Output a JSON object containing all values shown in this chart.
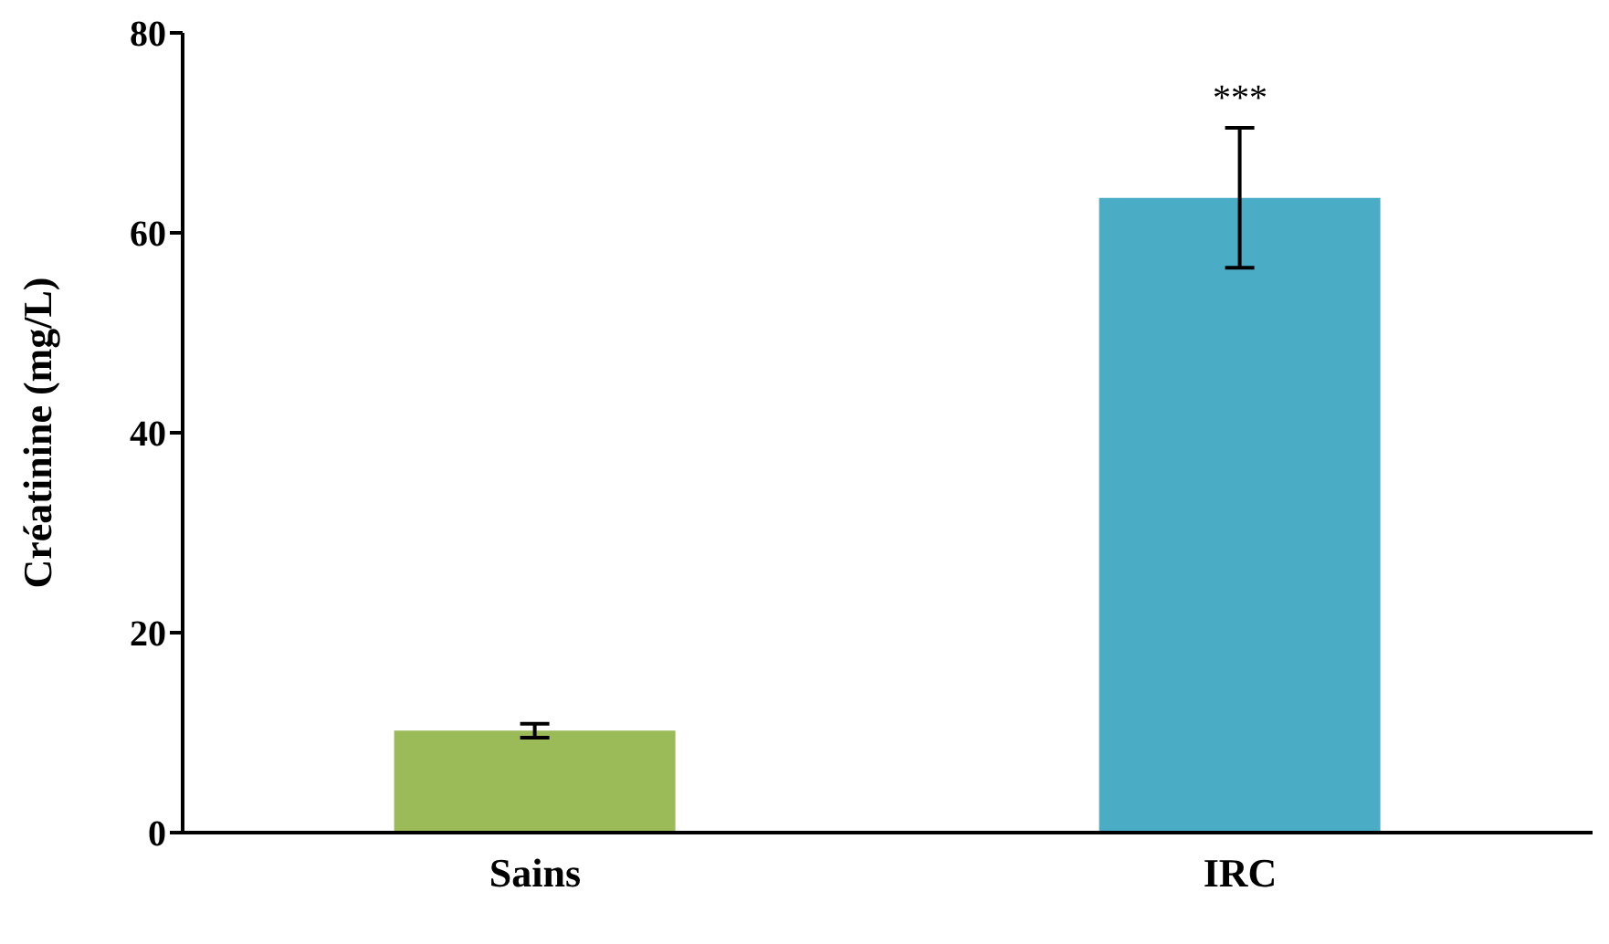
{
  "chart_data": {
    "type": "bar",
    "ylabel": "Créatinine (mg/L)",
    "categories": [
      "Sains",
      "IRC"
    ],
    "values": [
      10.2,
      63.5
    ],
    "colors": [
      "#9bbb59",
      "#4bacc6"
    ],
    "errors": [
      0.7,
      7
    ],
    "ylim": [
      0,
      80
    ],
    "yticks": [
      0,
      20,
      40,
      60,
      80
    ],
    "grid": false,
    "legend": false,
    "annotations": [
      {
        "text": "***",
        "x": "IRC",
        "y": 70.5
      }
    ]
  }
}
